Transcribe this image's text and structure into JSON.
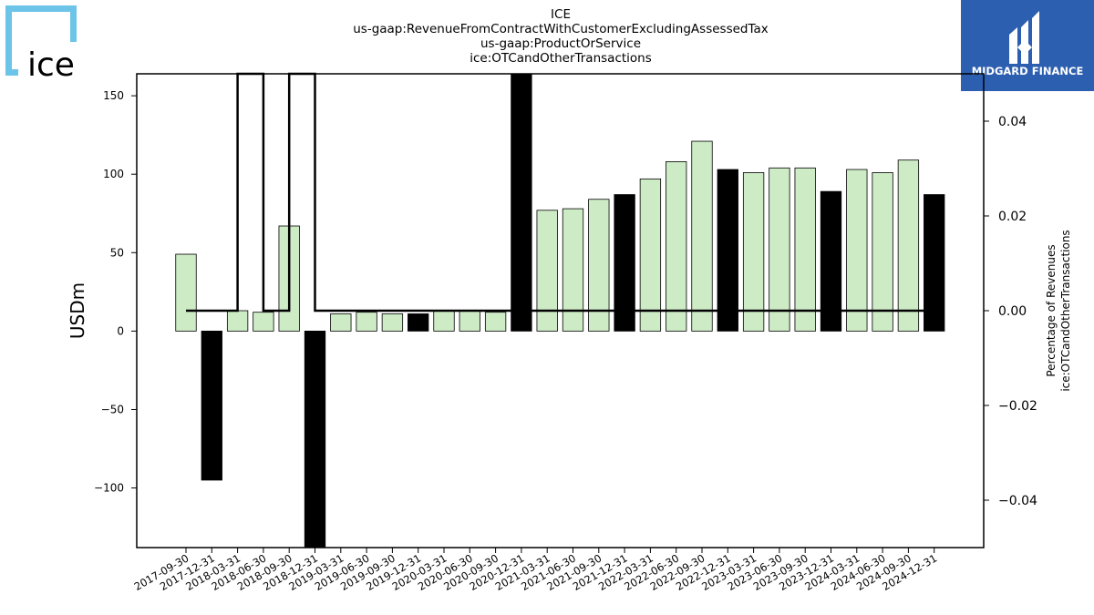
{
  "logo_left": {
    "text": "ice",
    "color": "#6cc4e8"
  },
  "logo_right": {
    "text": "MIDGARD FINANCE",
    "bg": "#2d5fb0"
  },
  "chart_data": {
    "type": "bar",
    "title_lines": [
      "ICE",
      "us-gaap:RevenueFromContractWithCustomerExcludingAssessedTax",
      "us-gaap:ProductOrService",
      "ice:OTCandOtherTransactions"
    ],
    "ylabel": "USDm",
    "y2label_lines": [
      "Percentage of Revenues",
      "ice:OTCandOtherTransactions"
    ],
    "ylim": [
      -138,
      164
    ],
    "y2lim": [
      -0.05,
      0.05
    ],
    "yticks": [
      -100,
      -50,
      0,
      50,
      100,
      150
    ],
    "y2ticks": [
      -0.04,
      -0.02,
      0.0,
      0.02,
      0.04
    ],
    "ytick_labels": [
      "−100",
      "−50",
      "0",
      "50",
      "100",
      "150"
    ],
    "y2tick_labels": [
      "−0.04",
      "−0.02",
      "0.00",
      "0.02",
      "0.04"
    ],
    "categories": [
      "2017-09-30",
      "2017-12-31",
      "2018-03-31",
      "2018-06-30",
      "2018-09-30",
      "2018-12-31",
      "2019-03-31",
      "2019-06-30",
      "2019-09-30",
      "2019-12-31",
      "2020-03-31",
      "2020-06-30",
      "2020-09-30",
      "2020-12-31",
      "2021-03-31",
      "2021-06-30",
      "2021-09-30",
      "2021-12-31",
      "2022-03-31",
      "2022-06-30",
      "2022-09-30",
      "2022-12-31",
      "2023-03-31",
      "2023-06-30",
      "2023-09-30",
      "2023-12-31",
      "2024-03-31",
      "2024-06-30",
      "2024-09-30",
      "2024-12-31"
    ],
    "values": [
      49,
      -95,
      13,
      12,
      67,
      -138,
      11,
      12,
      11,
      11,
      13,
      13,
      12,
      164,
      77,
      78,
      84,
      87,
      97,
      108,
      121,
      103,
      101,
      104,
      104,
      89,
      103,
      101,
      109,
      87
    ],
    "highlight": [
      false,
      true,
      false,
      false,
      false,
      true,
      false,
      false,
      false,
      true,
      false,
      false,
      false,
      true,
      false,
      false,
      false,
      true,
      false,
      false,
      false,
      true,
      false,
      false,
      false,
      true,
      false,
      false,
      false,
      true
    ],
    "bar_color": "#cdebc5",
    "highlight_color": "#000000",
    "line_series": {
      "values": [
        0.0,
        0.0,
        0.05,
        0.0,
        0.05,
        0.0,
        0.0,
        0.0,
        0.0,
        0.0,
        0.0,
        0.0,
        0.0,
        0.0,
        0.0,
        0.0,
        0.0,
        0.0,
        0.0,
        0.0,
        0.0,
        0.0,
        0.0,
        0.0,
        0.0,
        0.0,
        0.0,
        0.0,
        0.0,
        0.0
      ],
      "color": "#000000"
    }
  }
}
